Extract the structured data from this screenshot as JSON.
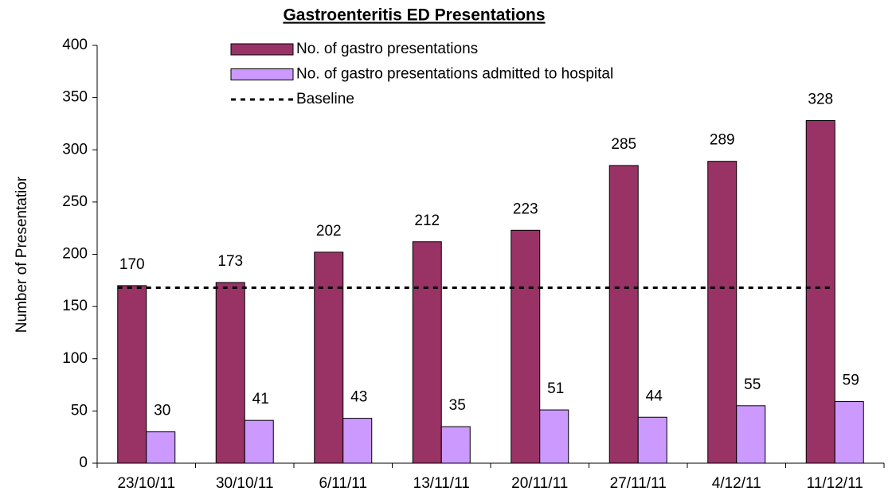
{
  "chart_data": {
    "type": "bar",
    "title": "Gastroenteritis ED Presentations",
    "y_label": "Number of Presentatior",
    "categories": [
      "23/10/11",
      "30/10/11",
      "6/11/11",
      "13/11/11",
      "20/11/11",
      "27/11/11",
      "4/12/11",
      "11/12/11"
    ],
    "series": [
      {
        "name": "No. of gastro presentations",
        "color": "#993366",
        "values": [
          170,
          173,
          202,
          212,
          223,
          285,
          289,
          328
        ]
      },
      {
        "name": "No. of gastro presentations admitted to hospital",
        "color": "#cc99ff",
        "values": [
          30,
          41,
          43,
          35,
          51,
          44,
          55,
          59
        ]
      },
      {
        "name": "Baseline",
        "color": "#000000",
        "type": "line",
        "dashed": true,
        "values": [
          168,
          168,
          168,
          168,
          168,
          168,
          168,
          168
        ]
      }
    ],
    "ylim": [
      0,
      400
    ],
    "yticks": [
      0,
      50,
      100,
      150,
      200,
      250,
      300,
      350,
      400
    ],
    "grid": false,
    "legend": "top"
  }
}
